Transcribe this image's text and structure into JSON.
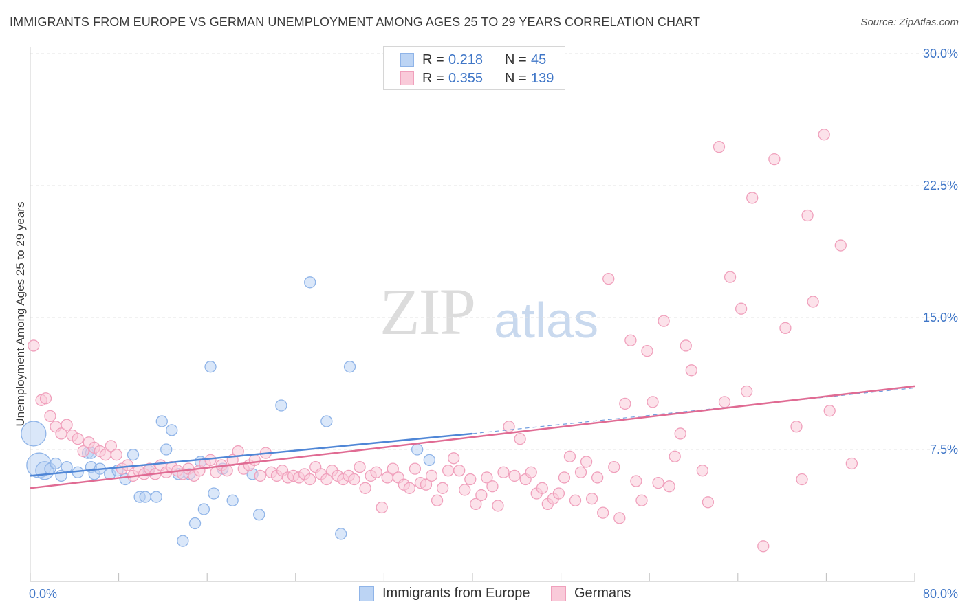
{
  "title": "IMMIGRANTS FROM EUROPE VS GERMAN UNEMPLOYMENT AMONG AGES 25 TO 29 YEARS CORRELATION CHART",
  "source": "Source: ZipAtlas.com",
  "watermark": {
    "zip": "ZIP",
    "atlas": "atlas"
  },
  "legend": {
    "rows": [
      {
        "r_label": "R =",
        "r_value": "0.218",
        "n_label": "N =",
        "n_value": "45",
        "color": "#8fb4e8",
        "fill": "#bcd4f4"
      },
      {
        "r_label": "R =",
        "r_value": "0.355",
        "n_label": "N =",
        "n_value": "139",
        "color": "#f0a0bc",
        "fill": "#f9cad9"
      }
    ]
  },
  "bottom_legend": [
    {
      "label": "Immigrants from Europe",
      "color": "#8fb4e8",
      "fill": "#bcd4f4"
    },
    {
      "label": "Germans",
      "color": "#f0a0bc",
      "fill": "#f9cad9"
    }
  ],
  "chart_data": {
    "type": "scatter",
    "xlabel": "",
    "ylabel": "Unemployment Among Ages 25 to 29 years",
    "xlim": [
      0,
      80
    ],
    "ylim": [
      0,
      30
    ],
    "x_tick_labels": [
      "0.0%",
      "80.0%"
    ],
    "y_ticks": [
      7.5,
      15.0,
      22.5,
      30.0
    ],
    "y_tick_labels": [
      "7.5%",
      "15.0%",
      "22.5%",
      "30.0%"
    ],
    "grid": true,
    "series": [
      {
        "name": "Immigrants from Europe",
        "color": "#4f86d6",
        "fill": "#bcd4f4",
        "trend": {
          "x": [
            0,
            40
          ],
          "y": [
            6.0,
            8.4
          ],
          "extended_to": [
            80,
            11.0
          ]
        },
        "points": [
          {
            "x": 0.3,
            "y": 8.4,
            "s": 3
          },
          {
            "x": 0.8,
            "y": 6.6,
            "s": 3
          },
          {
            "x": 1.3,
            "y": 6.3,
            "s": 2
          },
          {
            "x": 1.8,
            "y": 6.4,
            "s": 1
          },
          {
            "x": 2.3,
            "y": 6.7,
            "s": 1
          },
          {
            "x": 2.8,
            "y": 6.0,
            "s": 1
          },
          {
            "x": 3.3,
            "y": 6.5,
            "s": 1
          },
          {
            "x": 4.3,
            "y": 6.2,
            "s": 1
          },
          {
            "x": 5.2,
            "y": 7.3,
            "s": 1
          },
          {
            "x": 5.5,
            "y": 7.3,
            "s": 1
          },
          {
            "x": 5.5,
            "y": 6.5,
            "s": 1
          },
          {
            "x": 5.8,
            "y": 6.1,
            "s": 1
          },
          {
            "x": 6.3,
            "y": 6.4,
            "s": 1
          },
          {
            "x": 7.2,
            "y": 6.1,
            "s": 1
          },
          {
            "x": 7.9,
            "y": 6.3,
            "s": 1
          },
          {
            "x": 8.6,
            "y": 5.8,
            "s": 1
          },
          {
            "x": 9.3,
            "y": 7.2,
            "s": 1
          },
          {
            "x": 9.9,
            "y": 4.8,
            "s": 1
          },
          {
            "x": 10.4,
            "y": 4.8,
            "s": 1
          },
          {
            "x": 10.7,
            "y": 6.3,
            "s": 1
          },
          {
            "x": 11.4,
            "y": 4.8,
            "s": 1
          },
          {
            "x": 11.9,
            "y": 9.1,
            "s": 1
          },
          {
            "x": 12.3,
            "y": 7.5,
            "s": 1
          },
          {
            "x": 12.8,
            "y": 8.6,
            "s": 1
          },
          {
            "x": 13.4,
            "y": 6.1,
            "s": 1
          },
          {
            "x": 13.8,
            "y": 2.3,
            "s": 1
          },
          {
            "x": 14.4,
            "y": 6.1,
            "s": 1
          },
          {
            "x": 14.9,
            "y": 3.3,
            "s": 1
          },
          {
            "x": 15.4,
            "y": 6.8,
            "s": 1
          },
          {
            "x": 15.7,
            "y": 4.1,
            "s": 1
          },
          {
            "x": 16.3,
            "y": 12.2,
            "s": 1
          },
          {
            "x": 16.6,
            "y": 5.0,
            "s": 1
          },
          {
            "x": 17.4,
            "y": 6.4,
            "s": 1
          },
          {
            "x": 18.3,
            "y": 4.6,
            "s": 1
          },
          {
            "x": 20.1,
            "y": 6.1,
            "s": 1
          },
          {
            "x": 20.7,
            "y": 3.8,
            "s": 1
          },
          {
            "x": 22.7,
            "y": 10.0,
            "s": 1
          },
          {
            "x": 25.3,
            "y": 17.0,
            "s": 1
          },
          {
            "x": 26.8,
            "y": 9.1,
            "s": 1
          },
          {
            "x": 28.1,
            "y": 2.7,
            "s": 1
          },
          {
            "x": 28.9,
            "y": 12.2,
            "s": 1
          },
          {
            "x": 35.0,
            "y": 7.5,
            "s": 1
          },
          {
            "x": 36.1,
            "y": 6.9,
            "s": 1
          }
        ]
      },
      {
        "name": "Germans",
        "color": "#e06b93",
        "fill": "#f9cad9",
        "trend": {
          "x": [
            0,
            80
          ],
          "y": [
            5.3,
            11.1
          ]
        },
        "points": [
          {
            "x": 0.3,
            "y": 13.4
          },
          {
            "x": 1.0,
            "y": 10.3
          },
          {
            "x": 1.4,
            "y": 10.4
          },
          {
            "x": 1.8,
            "y": 9.4
          },
          {
            "x": 2.3,
            "y": 8.8
          },
          {
            "x": 2.8,
            "y": 8.4
          },
          {
            "x": 3.3,
            "y": 8.9
          },
          {
            "x": 3.8,
            "y": 8.3
          },
          {
            "x": 4.3,
            "y": 8.1
          },
          {
            "x": 4.8,
            "y": 7.4
          },
          {
            "x": 5.3,
            "y": 7.9
          },
          {
            "x": 5.8,
            "y": 7.6
          },
          {
            "x": 6.3,
            "y": 7.4
          },
          {
            "x": 6.8,
            "y": 7.2
          },
          {
            "x": 7.3,
            "y": 7.7
          },
          {
            "x": 7.8,
            "y": 7.2
          },
          {
            "x": 8.3,
            "y": 6.4
          },
          {
            "x": 8.8,
            "y": 6.6
          },
          {
            "x": 9.3,
            "y": 6.0
          },
          {
            "x": 9.8,
            "y": 6.3
          },
          {
            "x": 10.3,
            "y": 6.1
          },
          {
            "x": 10.8,
            "y": 6.4
          },
          {
            "x": 11.3,
            "y": 6.1
          },
          {
            "x": 11.8,
            "y": 6.6
          },
          {
            "x": 12.3,
            "y": 6.2
          },
          {
            "x": 12.8,
            "y": 6.5
          },
          {
            "x": 13.3,
            "y": 6.3
          },
          {
            "x": 13.8,
            "y": 6.1
          },
          {
            "x": 14.3,
            "y": 6.4
          },
          {
            "x": 14.8,
            "y": 6.0
          },
          {
            "x": 15.3,
            "y": 6.3
          },
          {
            "x": 15.8,
            "y": 6.7
          },
          {
            "x": 16.3,
            "y": 6.9
          },
          {
            "x": 16.8,
            "y": 6.2
          },
          {
            "x": 17.3,
            "y": 6.6
          },
          {
            "x": 17.8,
            "y": 6.3
          },
          {
            "x": 18.3,
            "y": 6.9
          },
          {
            "x": 18.8,
            "y": 7.4
          },
          {
            "x": 19.3,
            "y": 6.4
          },
          {
            "x": 19.8,
            "y": 6.6
          },
          {
            "x": 20.3,
            "y": 6.9
          },
          {
            "x": 20.8,
            "y": 6.0
          },
          {
            "x": 21.3,
            "y": 7.3
          },
          {
            "x": 21.8,
            "y": 6.2
          },
          {
            "x": 22.3,
            "y": 6.0
          },
          {
            "x": 22.8,
            "y": 6.3
          },
          {
            "x": 23.3,
            "y": 5.9
          },
          {
            "x": 23.8,
            "y": 6.0
          },
          {
            "x": 24.3,
            "y": 5.9
          },
          {
            "x": 24.8,
            "y": 6.1
          },
          {
            "x": 25.3,
            "y": 5.8
          },
          {
            "x": 25.8,
            "y": 6.5
          },
          {
            "x": 26.3,
            "y": 6.1
          },
          {
            "x": 26.8,
            "y": 5.8
          },
          {
            "x": 27.3,
            "y": 6.3
          },
          {
            "x": 27.8,
            "y": 6.0
          },
          {
            "x": 28.3,
            "y": 5.8
          },
          {
            "x": 28.8,
            "y": 6.0
          },
          {
            "x": 29.3,
            "y": 5.8
          },
          {
            "x": 29.8,
            "y": 6.5
          },
          {
            "x": 30.3,
            "y": 5.3
          },
          {
            "x": 30.8,
            "y": 6.0
          },
          {
            "x": 31.3,
            "y": 6.2
          },
          {
            "x": 31.8,
            "y": 4.2
          },
          {
            "x": 32.3,
            "y": 5.9
          },
          {
            "x": 32.8,
            "y": 6.4
          },
          {
            "x": 33.3,
            "y": 5.9
          },
          {
            "x": 33.8,
            "y": 5.5
          },
          {
            "x": 34.3,
            "y": 5.3
          },
          {
            "x": 34.8,
            "y": 6.4
          },
          {
            "x": 35.3,
            "y": 5.6
          },
          {
            "x": 35.8,
            "y": 5.5
          },
          {
            "x": 36.3,
            "y": 6.0
          },
          {
            "x": 36.8,
            "y": 4.6
          },
          {
            "x": 37.3,
            "y": 5.3
          },
          {
            "x": 37.8,
            "y": 6.3
          },
          {
            "x": 38.3,
            "y": 7.0
          },
          {
            "x": 38.8,
            "y": 6.3
          },
          {
            "x": 39.3,
            "y": 5.2
          },
          {
            "x": 39.8,
            "y": 5.8
          },
          {
            "x": 40.3,
            "y": 4.4
          },
          {
            "x": 40.8,
            "y": 4.9
          },
          {
            "x": 41.3,
            "y": 5.9
          },
          {
            "x": 41.8,
            "y": 5.4
          },
          {
            "x": 42.3,
            "y": 4.3
          },
          {
            "x": 42.8,
            "y": 6.2
          },
          {
            "x": 43.3,
            "y": 8.8
          },
          {
            "x": 43.8,
            "y": 6.0
          },
          {
            "x": 44.3,
            "y": 8.1
          },
          {
            "x": 44.8,
            "y": 5.8
          },
          {
            "x": 45.3,
            "y": 6.2
          },
          {
            "x": 45.8,
            "y": 5.0
          },
          {
            "x": 46.3,
            "y": 5.3
          },
          {
            "x": 46.8,
            "y": 4.4
          },
          {
            "x": 47.3,
            "y": 4.7
          },
          {
            "x": 47.8,
            "y": 5.0
          },
          {
            "x": 48.3,
            "y": 5.9
          },
          {
            "x": 48.8,
            "y": 7.1
          },
          {
            "x": 49.3,
            "y": 4.6
          },
          {
            "x": 49.8,
            "y": 6.2
          },
          {
            "x": 50.3,
            "y": 6.8
          },
          {
            "x": 50.8,
            "y": 4.7
          },
          {
            "x": 51.3,
            "y": 5.9
          },
          {
            "x": 51.8,
            "y": 3.9
          },
          {
            "x": 52.3,
            "y": 17.2
          },
          {
            "x": 52.8,
            "y": 6.5
          },
          {
            "x": 53.3,
            "y": 3.6
          },
          {
            "x": 53.8,
            "y": 10.1
          },
          {
            "x": 54.3,
            "y": 13.7
          },
          {
            "x": 54.8,
            "y": 5.7
          },
          {
            "x": 55.3,
            "y": 4.6
          },
          {
            "x": 55.8,
            "y": 13.1
          },
          {
            "x": 56.3,
            "y": 10.2
          },
          {
            "x": 56.8,
            "y": 5.6
          },
          {
            "x": 57.3,
            "y": 14.8
          },
          {
            "x": 57.8,
            "y": 5.4
          },
          {
            "x": 58.3,
            "y": 7.1
          },
          {
            "x": 58.8,
            "y": 8.4
          },
          {
            "x": 59.3,
            "y": 13.4
          },
          {
            "x": 59.8,
            "y": 12.0
          },
          {
            "x": 60.8,
            "y": 6.3
          },
          {
            "x": 61.3,
            "y": 4.5
          },
          {
            "x": 62.3,
            "y": 24.7
          },
          {
            "x": 62.8,
            "y": 10.2
          },
          {
            "x": 63.3,
            "y": 17.3
          },
          {
            "x": 64.3,
            "y": 15.5
          },
          {
            "x": 64.8,
            "y": 10.8
          },
          {
            "x": 65.3,
            "y": 21.8
          },
          {
            "x": 66.3,
            "y": 2.0
          },
          {
            "x": 67.3,
            "y": 24.0
          },
          {
            "x": 68.3,
            "y": 14.4
          },
          {
            "x": 69.3,
            "y": 8.8
          },
          {
            "x": 69.8,
            "y": 5.8
          },
          {
            "x": 70.3,
            "y": 20.8
          },
          {
            "x": 70.8,
            "y": 15.9
          },
          {
            "x": 71.8,
            "y": 25.4
          },
          {
            "x": 72.3,
            "y": 9.7
          },
          {
            "x": 73.3,
            "y": 19.1
          },
          {
            "x": 74.3,
            "y": 6.7
          }
        ]
      }
    ]
  }
}
